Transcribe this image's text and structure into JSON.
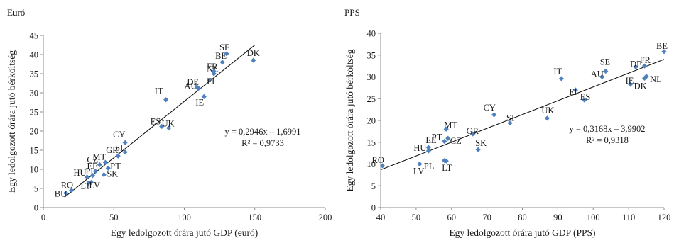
{
  "chart_data": [
    {
      "type": "scatter",
      "title": "Euró",
      "xlabel": "Egy ledolgozott órára jutó GDP (euró)",
      "ylabel": "Egy ledolgozott órára jutó bérköltség",
      "xlim": [
        0,
        200
      ],
      "ylim": [
        0,
        45
      ],
      "xticks": [
        "0",
        "50",
        "100",
        "150",
        "200"
      ],
      "yticks": [
        "0",
        "5",
        "10",
        "15",
        "20",
        "25",
        "30",
        "35",
        "40",
        "45"
      ],
      "marker_color": "#4f81bd",
      "grid": false,
      "trendline": {
        "slope": 0.2946,
        "intercept": -1.6991,
        "x_range": [
          15,
          150
        ]
      },
      "equation": "y = 0,2946x – 1,6991",
      "r2": "R² = 0,9733",
      "points": [
        {
          "label": "BU",
          "x": 16,
          "y": 3.8
        },
        {
          "label": "RO",
          "x": 20,
          "y": 4.5
        },
        {
          "label": "LT",
          "x": 32,
          "y": 6.4
        },
        {
          "label": "LV",
          "x": 34,
          "y": 6.6
        },
        {
          "label": "HU",
          "x": 31,
          "y": 8.0
        },
        {
          "label": "PL",
          "x": 35,
          "y": 8.4
        },
        {
          "label": "SK",
          "x": 43,
          "y": 8.6
        },
        {
          "label": "EE",
          "x": 37,
          "y": 9.5
        },
        {
          "label": "PT",
          "x": 46,
          "y": 10.3
        },
        {
          "label": "CZ",
          "x": 40,
          "y": 11.2
        },
        {
          "label": "MT",
          "x": 44,
          "y": 11.8
        },
        {
          "label": "GR",
          "x": 53,
          "y": 13.5
        },
        {
          "label": "SI",
          "x": 58,
          "y": 14.5
        },
        {
          "label": "CY",
          "x": 58,
          "y": 17.0
        },
        {
          "label": "ES",
          "x": 84,
          "y": 21.2
        },
        {
          "label": "UK",
          "x": 89,
          "y": 20.8
        },
        {
          "label": "IT",
          "x": 87,
          "y": 28.2
        },
        {
          "label": "IE",
          "x": 114,
          "y": 29.0
        },
        {
          "label": "AU",
          "x": 110,
          "y": 31.2
        },
        {
          "label": "DE",
          "x": 109,
          "y": 31.5
        },
        {
          "label": "FI",
          "x": 118,
          "y": 33.3
        },
        {
          "label": "NL",
          "x": 121,
          "y": 35.0
        },
        {
          "label": "FR",
          "x": 121,
          "y": 35.6
        },
        {
          "label": "BE",
          "x": 127,
          "y": 38.0
        },
        {
          "label": "SE",
          "x": 130,
          "y": 40.2
        },
        {
          "label": "DK",
          "x": 149,
          "y": 38.5
        }
      ]
    },
    {
      "type": "scatter",
      "title": "PPS",
      "xlabel": "Egy ledolgozott órára jutó GDP (PPS)",
      "ylabel": "Egy ledolgozott órára jutó bérköltség",
      "xlim": [
        40,
        120
      ],
      "ylim": [
        0,
        40
      ],
      "xticks": [
        "40",
        "50",
        "60",
        "70",
        "80",
        "90",
        "100",
        "110",
        "120"
      ],
      "yticks": [
        "0",
        "5",
        "10",
        "15",
        "20",
        "25",
        "30",
        "35",
        "40"
      ],
      "marker_color": "#4f81bd",
      "grid": false,
      "trendline": {
        "slope": 0.3168,
        "intercept": -3.9902,
        "x_range": [
          40,
          120
        ]
      },
      "equation": "y = 0,3168x – 3,9902",
      "r2": "R² = 0,9318",
      "points": [
        {
          "label": "RO",
          "x": 40.5,
          "y": 9.6
        },
        {
          "label": "LV",
          "x": 51,
          "y": 10.0
        },
        {
          "label": "HU",
          "x": 53.5,
          "y": 13.0
        },
        {
          "label": "EE",
          "x": 53.5,
          "y": 13.8
        },
        {
          "label": "PL",
          "x": 58,
          "y": 10.8
        },
        {
          "label": "LT",
          "x": 58.5,
          "y": 10.7
        },
        {
          "label": "PT",
          "x": 58,
          "y": 15.2
        },
        {
          "label": "CZ",
          "x": 59,
          "y": 15.9
        },
        {
          "label": "MT",
          "x": 58.5,
          "y": 18.0
        },
        {
          "label": "GR",
          "x": 66,
          "y": 16.9
        },
        {
          "label": "SK",
          "x": 67.5,
          "y": 13.3
        },
        {
          "label": "CY",
          "x": 72,
          "y": 21.3
        },
        {
          "label": "SI",
          "x": 76.5,
          "y": 19.4
        },
        {
          "label": "UK",
          "x": 87,
          "y": 20.5
        },
        {
          "label": "IT",
          "x": 91,
          "y": 29.6
        },
        {
          "label": "FI",
          "x": 95,
          "y": 27.0
        },
        {
          "label": "ES",
          "x": 97.5,
          "y": 24.7
        },
        {
          "label": "AU",
          "x": 102.5,
          "y": 30.0
        },
        {
          "label": "SE",
          "x": 103.5,
          "y": 31.3
        },
        {
          "label": "IE",
          "x": 110.5,
          "y": 28.3
        },
        {
          "label": "DE",
          "x": 112,
          "y": 32.3
        },
        {
          "label": "FR",
          "x": 114.5,
          "y": 32.5
        },
        {
          "label": "NL",
          "x": 115,
          "y": 30.1
        },
        {
          "label": "DK",
          "x": 114.5,
          "y": 29.7
        },
        {
          "label": "BE",
          "x": 120,
          "y": 35.8
        }
      ]
    }
  ]
}
